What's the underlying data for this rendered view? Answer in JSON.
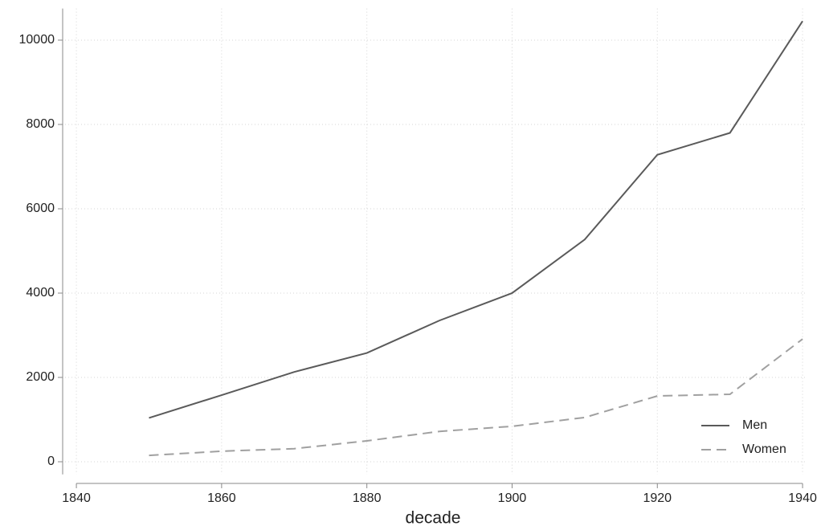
{
  "chart_data": {
    "type": "line",
    "x": [
      1850,
      1860,
      1870,
      1880,
      1890,
      1900,
      1910,
      1920,
      1930,
      1940
    ],
    "series": [
      {
        "name": "Men",
        "color": "#5a5a5a",
        "dash": "solid",
        "values": [
          1040,
          1580,
          2130,
          2580,
          3350,
          4000,
          5270,
          7280,
          7800,
          10450
        ]
      },
      {
        "name": "Women",
        "color": "#a0a0a0",
        "dash": "dashed",
        "values": [
          150,
          250,
          310,
          495,
          720,
          840,
          1050,
          1560,
          1600,
          2910
        ]
      }
    ],
    "xlabel": "decade",
    "xlim": [
      1838,
      1940.5
    ],
    "xticks": [
      1840,
      1860,
      1880,
      1900,
      1920,
      1940
    ],
    "ylim": [
      -300,
      10750
    ],
    "yticks": [
      0,
      2000,
      4000,
      6000,
      8000,
      10000
    ],
    "grid": true,
    "legend": "lower right"
  }
}
